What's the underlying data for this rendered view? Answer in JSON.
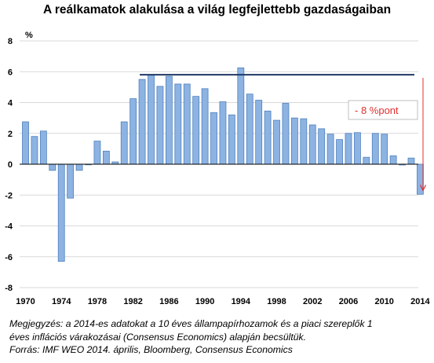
{
  "chart_data": {
    "type": "bar",
    "title": "A reálkamatok alakulása a világ legfejlettebb gazdaságaiban",
    "ylabel": "%",
    "xlabel": "",
    "ylim": [
      -8,
      8
    ],
    "yticks": [
      -8,
      -6,
      -4,
      -2,
      0,
      2,
      4,
      6,
      8
    ],
    "xtick_labels": [
      "1970",
      "1974",
      "1978",
      "1982",
      "1986",
      "1990",
      "1994",
      "1998",
      "2002",
      "2006",
      "2010",
      "2014"
    ],
    "grid": "horizontal",
    "bar_color": "#8db3e2",
    "bar_border_color": "#4f81bd",
    "categories": [
      1970,
      1971,
      1972,
      1973,
      1974,
      1975,
      1976,
      1977,
      1978,
      1979,
      1980,
      1981,
      1982,
      1983,
      1984,
      1985,
      1986,
      1987,
      1988,
      1989,
      1990,
      1991,
      1992,
      1993,
      1994,
      1995,
      1996,
      1997,
      1998,
      1999,
      2000,
      2001,
      2002,
      2003,
      2004,
      2005,
      2006,
      2007,
      2008,
      2009,
      2010,
      2011,
      2012,
      2013,
      2014
    ],
    "values": [
      2.75,
      1.8,
      2.15,
      -0.4,
      -6.3,
      -2.2,
      -0.4,
      0.0,
      1.5,
      0.85,
      0.15,
      2.75,
      4.25,
      5.5,
      5.8,
      5.05,
      5.7,
      5.2,
      5.2,
      4.4,
      4.9,
      3.35,
      4.05,
      3.2,
      6.25,
      4.55,
      4.15,
      3.45,
      2.85,
      3.95,
      3.0,
      2.95,
      2.55,
      2.3,
      1.95,
      1.6,
      2.0,
      2.05,
      0.45,
      2.0,
      1.95,
      0.55,
      -0.05,
      0.4,
      -1.95
    ],
    "reference_line": {
      "value": 5.8,
      "color": "#1f3864"
    },
    "annotation": {
      "text": "- 8 %pont",
      "color": "#e03030",
      "arrow_from": 5.8,
      "arrow_to": -1.7
    }
  },
  "notes": {
    "line1": "Megjegyzés: a 2014-es  adatokat a 10 éves állampapírhozamok és a piaci szereplők 1",
    "line2": "éves inflációs várakozásai (Consensus Economics) alapján becsültük.",
    "line3": "Forrás: IMF WEO 2014.  április, Bloomberg, Consensus Economics"
  }
}
